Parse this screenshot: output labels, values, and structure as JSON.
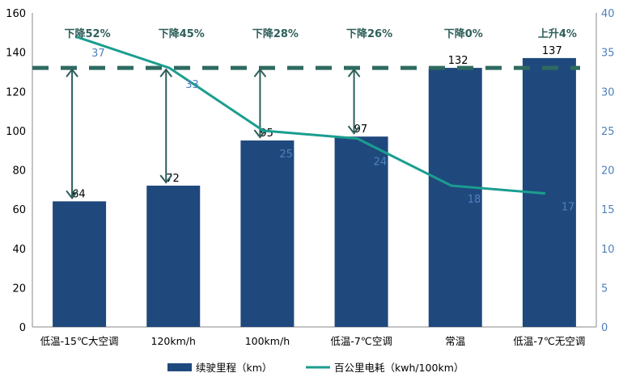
{
  "chart_data": {
    "type": "bar+line",
    "categories": [
      "低温-15℃大空调",
      "120km/h",
      "100km/h",
      "低温-7℃空调",
      "常温",
      "低温-7℃无空调"
    ],
    "series": [
      {
        "name": "续驶里程（km）",
        "type": "bar",
        "axis": "left",
        "values": [
          64,
          72,
          95,
          97,
          132,
          137
        ],
        "color": "#1f497d"
      },
      {
        "name": "百公里电耗（kwh/100km）",
        "type": "line",
        "axis": "right",
        "values": [
          37,
          33,
          25,
          24,
          18,
          17
        ],
        "color": "#1a9e8f"
      }
    ],
    "annotations": [
      "下降52%",
      "下降45%",
      "下降28%",
      "下降26%",
      "下降0%",
      "上升4%"
    ],
    "reference_line": {
      "value": 132,
      "axis": "left",
      "style": "dashed",
      "color": "#2e6a60"
    },
    "y_left": {
      "range": [
        0,
        160
      ],
      "ticks": [
        0,
        20,
        40,
        60,
        80,
        100,
        120,
        140,
        160
      ]
    },
    "y_right": {
      "range": [
        0,
        40
      ],
      "ticks": [
        0,
        5,
        10,
        15,
        20,
        25,
        30,
        35,
        40
      ],
      "color": "#4f81bd"
    },
    "legend_placement": "bottom",
    "grid": false
  }
}
